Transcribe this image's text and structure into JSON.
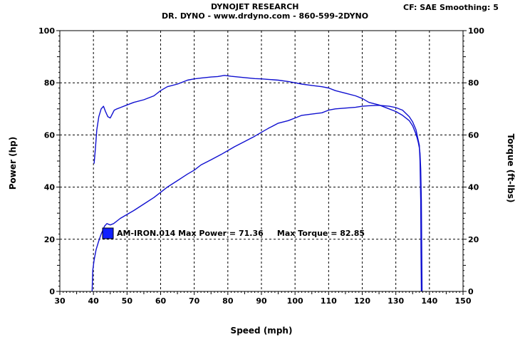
{
  "header": {
    "title": "DYNOJET RESEARCH",
    "subtitle": "DR. DYNO - www.drdyno.com - 860-599-2DYNO",
    "correction": "CF: SAE  Smoothing: 5"
  },
  "colors": {
    "line": "#1010d0",
    "legend_box": "#1020ff",
    "grid": "#000000",
    "plot_bg": "#ffffff"
  },
  "chart_data": {
    "type": "line",
    "xlabel": "Speed (mph)",
    "ylabel": "Power (hp)",
    "y2label": "Torque (ft-lbs)",
    "xlim": [
      30,
      150
    ],
    "ylim": [
      0,
      100
    ],
    "y2lim": [
      0,
      100
    ],
    "x_ticks": [
      "30",
      "40",
      "50",
      "60",
      "70",
      "80",
      "90",
      "100",
      "110",
      "120",
      "130",
      "140",
      "150"
    ],
    "y_ticks": [
      "0",
      "20",
      "40",
      "60",
      "80",
      "100"
    ],
    "y2_ticks": [
      "0",
      "20",
      "40",
      "60",
      "80",
      "100"
    ],
    "grid": true,
    "legend": {
      "text": "AM-IRON.014 Max Power = 71.36     Max Torque = 82.85",
      "placement": "lower-left"
    },
    "series": [
      {
        "axis": "left",
        "x": [
          39.6,
          39.8,
          40.2,
          40.8,
          41.5,
          42.3,
          43.3,
          44.0,
          45.0,
          46.0,
          48.0,
          50.0,
          52.0,
          55.0,
          58.0,
          60.0,
          62.0,
          65.0,
          68.0,
          70.0,
          72.0,
          75.0,
          78.0,
          80.0,
          82.0,
          85.0,
          88.0,
          90.0,
          92.0,
          95.0,
          98.0,
          100.0,
          102.0,
          105.0,
          108.0,
          110.0,
          112.0,
          115.0,
          118.0,
          120.0,
          122.0,
          125.0,
          128.0,
          130.0,
          132.0,
          134.0,
          135.0,
          136.0,
          136.5,
          137.0,
          137.2,
          137.4,
          137.5,
          137.6
        ],
        "y": [
          0,
          8,
          12,
          16,
          19,
          22,
          25,
          26,
          25.5,
          26,
          28,
          29.5,
          31,
          33.5,
          36,
          38,
          40,
          42.5,
          45,
          46.5,
          48.5,
          50.5,
          52.5,
          54,
          55.5,
          57.5,
          59.5,
          61,
          62.5,
          64.5,
          65.5,
          66.5,
          67.5,
          68,
          68.5,
          69.5,
          70,
          70.3,
          70.6,
          71,
          71.2,
          71.36,
          71,
          70.5,
          69.5,
          67,
          65,
          62,
          59,
          56,
          50,
          35,
          15,
          0
        ]
      },
      {
        "axis": "right",
        "x": [
          40.2,
          40.6,
          41.0,
          41.6,
          42.3,
          43.0,
          43.6,
          44.3,
          45.0,
          45.6,
          46.2,
          47.0,
          48.0,
          50.0,
          52.0,
          55.0,
          58.0,
          60.0,
          62.0,
          65.0,
          68.0,
          70.0,
          72.0,
          75.0,
          77.0,
          79.0,
          81.0,
          85.0,
          88.0,
          90.0,
          92.0,
          95.0,
          98.0,
          100.0,
          102.0,
          105.0,
          108.0,
          110.0,
          112.0,
          115.0,
          118.0,
          120.0,
          122.0,
          125.0,
          128.0,
          130.0,
          132.0,
          134.0,
          135.0,
          135.8,
          136.3,
          136.7,
          137.0,
          137.2,
          137.4,
          137.6,
          137.8
        ],
        "y": [
          49,
          55,
          62,
          67,
          70,
          71,
          69,
          67,
          66.5,
          68,
          69.5,
          70,
          70.5,
          71.5,
          72.5,
          73.5,
          75,
          77,
          78.5,
          79.5,
          81,
          81.5,
          81.8,
          82.2,
          82.4,
          82.85,
          82.5,
          82,
          81.6,
          81.5,
          81.3,
          81,
          80.5,
          80,
          79.5,
          79,
          78.5,
          78,
          77,
          76,
          75,
          74,
          72.5,
          71.5,
          70,
          69,
          67.5,
          65.5,
          63.5,
          61,
          59,
          57,
          55,
          53,
          47,
          35,
          0
        ]
      }
    ]
  }
}
